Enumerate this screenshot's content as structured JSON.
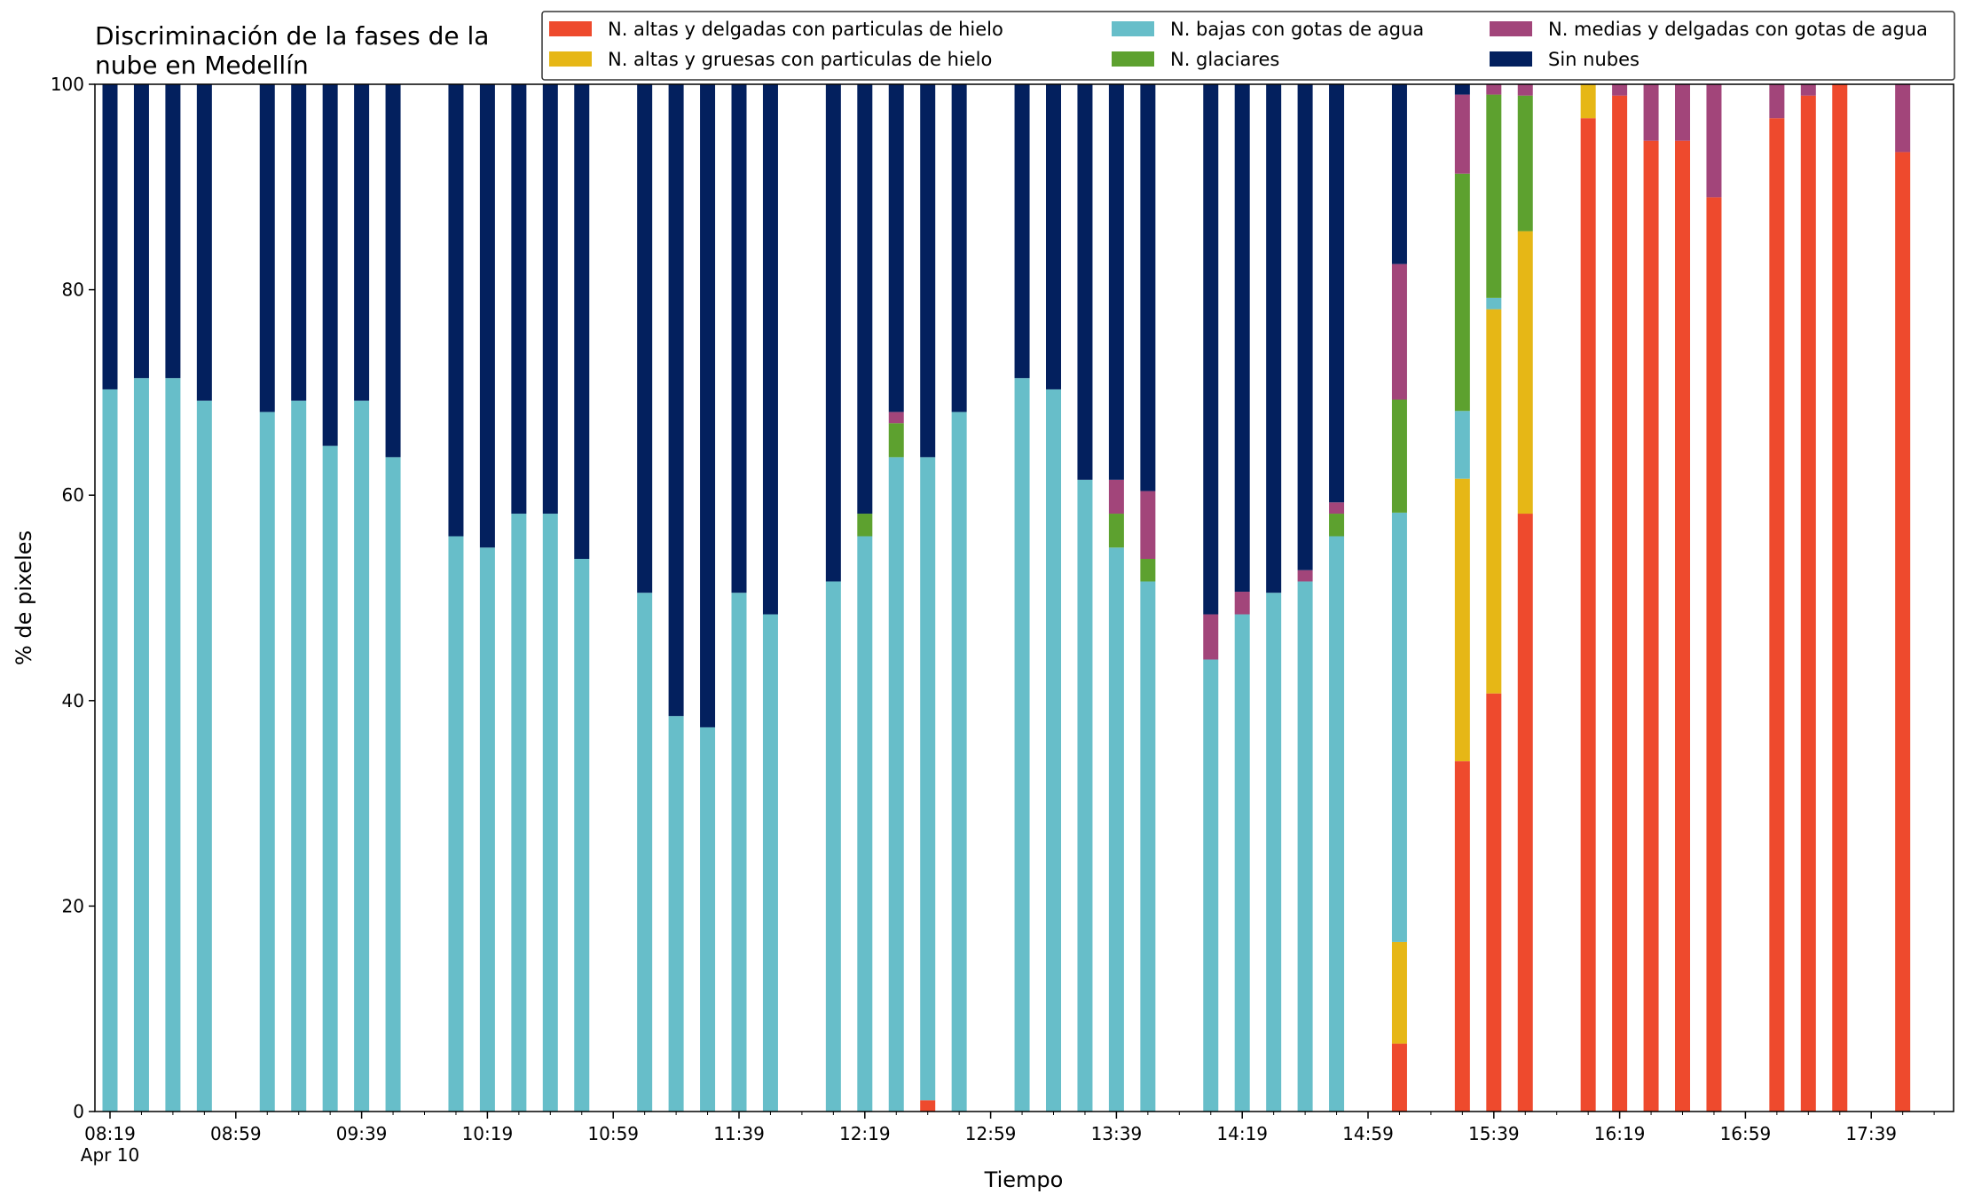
{
  "chart_data": {
    "type": "bar",
    "stacked": true,
    "title_line1": "Discriminación de la fases de la",
    "title_line2": "nube en Medellín",
    "xlabel": "Tiempo",
    "ylabel": "% de pixeles",
    "ylim": [
      0,
      100
    ],
    "yticks": [
      0,
      20,
      40,
      60,
      80,
      100
    ],
    "xlim_minutes": [
      8.5,
      61.5
    ],
    "x_tick_labels": [
      {
        "slot": 0,
        "label": "08:19"
      },
      {
        "slot": 4,
        "label": "08:59"
      },
      {
        "slot": 8,
        "label": "09:39"
      },
      {
        "slot": 12,
        "label": "10:19"
      },
      {
        "slot": 16,
        "label": "10:59"
      },
      {
        "slot": 20,
        "label": "11:39"
      },
      {
        "slot": 24,
        "label": "12:19"
      },
      {
        "slot": 28,
        "label": "12:59"
      },
      {
        "slot": 32,
        "label": "13:39"
      },
      {
        "slot": 36,
        "label": "14:19"
      },
      {
        "slot": 40,
        "label": "14:59"
      },
      {
        "slot": 44,
        "label": "15:39"
      },
      {
        "slot": 48,
        "label": "16:19"
      },
      {
        "slot": 52,
        "label": "16:59"
      },
      {
        "slot": 56,
        "label": "17:39"
      }
    ],
    "x_sublabel": "Apr 10",
    "x_slot_count": 60,
    "legend_position": "top-right",
    "series": [
      {
        "name": "N. altas y delgadas con particulas de hielo",
        "color": "#ee4a2d"
      },
      {
        "name": "N. altas y gruesas con particulas de hielo",
        "color": "#e6b716"
      },
      {
        "name": "N. bajas con gotas de agua",
        "color": "#67bec9"
      },
      {
        "name": "N. glaciares",
        "color": "#5da12f"
      },
      {
        "name": "N. medias y delgadas con gotas de agua",
        "color": "#a2457a"
      },
      {
        "name": "Sin nubes",
        "color": "#03205e"
      }
    ],
    "bars": [
      {
        "slot": 0,
        "time": "08:19",
        "values": [
          0,
          0,
          70.3,
          0,
          0,
          29.7
        ]
      },
      {
        "slot": 1,
        "time": "08:29",
        "values": [
          0,
          0,
          71.4,
          0,
          0,
          28.6
        ]
      },
      {
        "slot": 2,
        "time": "08:39",
        "values": [
          0,
          0,
          71.4,
          0,
          0,
          28.6
        ]
      },
      {
        "slot": 3,
        "time": "08:49",
        "values": [
          0,
          0,
          69.2,
          0,
          0,
          30.8
        ]
      },
      {
        "slot": 5,
        "time": "09:09",
        "values": [
          0,
          0,
          68.1,
          0,
          0,
          31.9
        ]
      },
      {
        "slot": 6,
        "time": "09:19",
        "values": [
          0,
          0,
          69.2,
          0,
          0,
          30.8
        ]
      },
      {
        "slot": 7,
        "time": "09:29",
        "values": [
          0,
          0,
          64.8,
          0,
          0,
          35.2
        ]
      },
      {
        "slot": 8,
        "time": "09:39",
        "values": [
          0,
          0,
          69.2,
          0,
          0,
          30.8
        ]
      },
      {
        "slot": 9,
        "time": "09:49",
        "values": [
          0,
          0,
          63.7,
          0,
          0,
          36.3
        ]
      },
      {
        "slot": 11,
        "time": "10:09",
        "values": [
          0,
          0,
          56.0,
          0,
          0,
          44.0
        ]
      },
      {
        "slot": 12,
        "time": "10:19",
        "values": [
          0,
          0,
          54.9,
          0,
          0,
          45.1
        ]
      },
      {
        "slot": 13,
        "time": "10:29",
        "values": [
          0,
          0,
          58.2,
          0,
          0,
          41.8
        ]
      },
      {
        "slot": 14,
        "time": "10:39",
        "values": [
          0,
          0,
          58.2,
          0,
          0,
          41.8
        ]
      },
      {
        "slot": 15,
        "time": "10:49",
        "values": [
          0,
          0,
          53.8,
          0,
          0,
          46.2
        ]
      },
      {
        "slot": 17,
        "time": "11:09",
        "values": [
          0,
          0,
          50.5,
          0,
          0,
          49.5
        ]
      },
      {
        "slot": 18,
        "time": "11:19",
        "values": [
          0,
          0,
          38.5,
          0,
          0,
          61.5
        ]
      },
      {
        "slot": 19,
        "time": "11:29",
        "values": [
          0,
          0,
          37.4,
          0,
          0,
          62.6
        ]
      },
      {
        "slot": 20,
        "time": "11:39",
        "values": [
          0,
          0,
          50.5,
          0,
          0,
          49.5
        ]
      },
      {
        "slot": 21,
        "time": "11:49",
        "values": [
          0,
          0,
          48.4,
          0,
          0,
          51.6
        ]
      },
      {
        "slot": 23,
        "time": "12:09",
        "values": [
          0,
          0,
          51.6,
          0,
          0,
          48.4
        ]
      },
      {
        "slot": 24,
        "time": "12:19",
        "values": [
          0,
          0,
          56.0,
          2.2,
          0,
          41.8
        ]
      },
      {
        "slot": 25,
        "time": "12:29",
        "values": [
          0,
          0,
          63.7,
          3.3,
          1.1,
          31.9
        ]
      },
      {
        "slot": 26,
        "time": "12:39",
        "values": [
          1.1,
          0,
          62.6,
          0,
          0,
          36.3
        ]
      },
      {
        "slot": 27,
        "time": "12:49",
        "values": [
          0,
          0,
          68.1,
          0,
          0,
          31.9
        ]
      },
      {
        "slot": 29,
        "time": "13:09",
        "values": [
          0,
          0,
          71.4,
          0,
          0,
          28.6
        ]
      },
      {
        "slot": 30,
        "time": "13:19",
        "values": [
          0,
          0,
          70.3,
          0,
          0,
          29.7
        ]
      },
      {
        "slot": 31,
        "time": "13:29",
        "values": [
          0,
          0,
          61.5,
          0,
          0,
          38.5
        ]
      },
      {
        "slot": 32,
        "time": "13:39",
        "values": [
          0,
          0,
          54.9,
          3.3,
          3.3,
          38.5
        ]
      },
      {
        "slot": 33,
        "time": "13:49",
        "values": [
          0,
          0,
          51.6,
          2.2,
          6.6,
          39.6
        ]
      },
      {
        "slot": 35,
        "time": "14:09",
        "values": [
          0,
          0,
          44.0,
          0,
          4.4,
          51.6
        ]
      },
      {
        "slot": 36,
        "time": "14:19",
        "values": [
          0,
          0,
          48.4,
          0,
          2.2,
          49.4
        ]
      },
      {
        "slot": 37,
        "time": "14:29",
        "values": [
          0,
          0,
          50.5,
          0,
          0,
          49.5
        ]
      },
      {
        "slot": 38,
        "time": "14:39",
        "values": [
          0,
          0,
          51.6,
          0,
          1.1,
          47.3
        ]
      },
      {
        "slot": 39,
        "time": "14:49",
        "values": [
          0,
          0,
          56.0,
          2.2,
          1.1,
          40.7
        ]
      },
      {
        "slot": 41,
        "time": "15:09",
        "values": [
          6.6,
          9.9,
          41.8,
          11.0,
          13.2,
          17.5
        ]
      },
      {
        "slot": 43,
        "time": "15:29",
        "values": [
          34.1,
          27.5,
          6.6,
          23.1,
          7.7,
          1.0
        ]
      },
      {
        "slot": 44,
        "time": "15:39",
        "values": [
          40.7,
          37.4,
          1.1,
          19.8,
          1.0,
          0
        ]
      },
      {
        "slot": 45,
        "time": "15:49",
        "values": [
          58.2,
          27.5,
          0,
          13.2,
          1.1,
          0
        ]
      },
      {
        "slot": 47,
        "time": "16:09",
        "values": [
          96.7,
          3.3,
          0,
          0,
          0,
          0
        ]
      },
      {
        "slot": 48,
        "time": "16:19",
        "values": [
          98.9,
          0,
          0,
          0,
          1.1,
          0
        ]
      },
      {
        "slot": 49,
        "time": "16:29",
        "values": [
          94.5,
          0,
          0,
          0,
          5.5,
          0
        ]
      },
      {
        "slot": 50,
        "time": "16:39",
        "values": [
          94.5,
          0,
          0,
          0,
          5.5,
          0
        ]
      },
      {
        "slot": 51,
        "time": "16:49",
        "values": [
          89.0,
          0,
          0,
          0,
          11.0,
          0
        ]
      },
      {
        "slot": 53,
        "time": "17:09",
        "values": [
          96.7,
          0,
          0,
          0,
          3.3,
          0
        ]
      },
      {
        "slot": 54,
        "time": "17:19",
        "values": [
          98.9,
          0,
          0,
          0,
          1.1,
          0
        ]
      },
      {
        "slot": 55,
        "time": "17:29",
        "values": [
          100,
          0,
          0,
          0,
          0,
          0
        ]
      },
      {
        "slot": 57,
        "time": "17:49",
        "values": [
          93.4,
          0,
          0,
          0,
          6.6,
          0
        ]
      }
    ]
  }
}
